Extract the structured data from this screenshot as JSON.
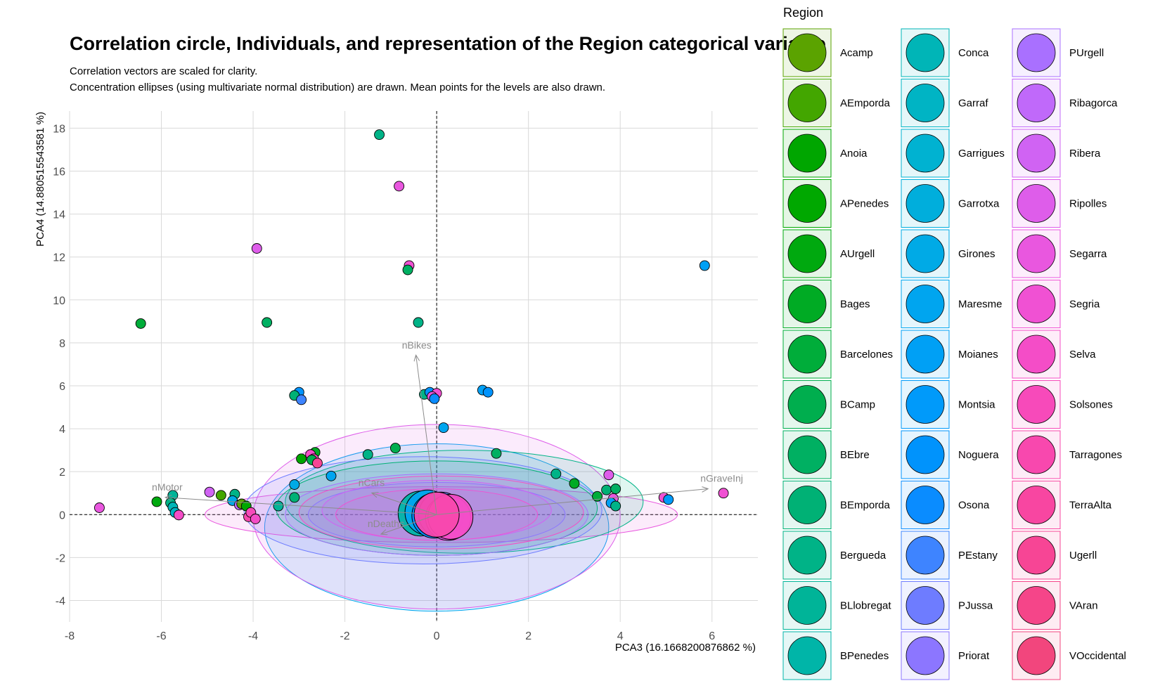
{
  "chart_data": {
    "type": "scatter",
    "title": "Correlation circle, Individuals, and representation of the Region categorical variable",
    "subtitle_lines": [
      "Correlation vectors are scaled for clarity.",
      "Concentration ellipses (using multivariate normal distribution) are drawn. Mean points for the levels are also drawn."
    ],
    "xlabel": "PCA3 (16.1668200876862 %)",
    "ylabel": "PCA4 (14.880515543581 %)",
    "xlim": [
      -8,
      7
    ],
    "ylim": [
      -5,
      18.8
    ],
    "xticks": [
      -8,
      -6,
      -4,
      -2,
      0,
      2,
      4,
      6
    ],
    "yticks": [
      -4,
      -2,
      0,
      2,
      4,
      6,
      8,
      10,
      12,
      14,
      16,
      18
    ],
    "legend": {
      "title": "Region",
      "placement": "right",
      "entries": [
        {
          "label": "Acamp",
          "color": "#5BA300"
        },
        {
          "label": "AEmporda",
          "color": "#43A600"
        },
        {
          "label": "Anoia",
          "color": "#00A600"
        },
        {
          "label": "APenedes",
          "color": "#00A800"
        },
        {
          "label": "AUrgell",
          "color": "#00A90F"
        },
        {
          "label": "Bages",
          "color": "#00AB24"
        },
        {
          "label": "Barcelones",
          "color": "#00AD3A"
        },
        {
          "label": "BCamp",
          "color": "#00AE4E"
        },
        {
          "label": "BEbre",
          "color": "#00B062"
        },
        {
          "label": "BEmporda",
          "color": "#00B175"
        },
        {
          "label": "Bergueda",
          "color": "#00B387"
        },
        {
          "label": "BLlobregat",
          "color": "#00B498"
        },
        {
          "label": "BPenedes",
          "color": "#00B5A8"
        },
        {
          "label": "Conca",
          "color": "#00B5B7"
        },
        {
          "label": "Garraf",
          "color": "#00B4C4"
        },
        {
          "label": "Garrigues",
          "color": "#00B2D1"
        },
        {
          "label": "Garrotxa",
          "color": "#00AEDC"
        },
        {
          "label": "Girones",
          "color": "#00AAE6"
        },
        {
          "label": "Maresme",
          "color": "#00A5EF"
        },
        {
          "label": "Moianes",
          "color": "#00A0F5"
        },
        {
          "label": "Montsia",
          "color": "#009AFA"
        },
        {
          "label": "Noguera",
          "color": "#0093FC"
        },
        {
          "label": "Osona",
          "color": "#0A8CFF"
        },
        {
          "label": "PEstany",
          "color": "#3E84FF"
        },
        {
          "label": "PJussa",
          "color": "#6E7CFF"
        },
        {
          "label": "Priorat",
          "color": "#8C76FF"
        },
        {
          "label": "PUrgell",
          "color": "#A970FF"
        },
        {
          "label": "Ribagorca",
          "color": "#C069FA"
        },
        {
          "label": "Ribera",
          "color": "#D063F3"
        },
        {
          "label": "Ripolles",
          "color": "#DE5DEA"
        },
        {
          "label": "Segarra",
          "color": "#E957DF"
        },
        {
          "label": "Segria",
          "color": "#F051D3"
        },
        {
          "label": "Selva",
          "color": "#F44DC7"
        },
        {
          "label": "Solsones",
          "color": "#F74ABA"
        },
        {
          "label": "Tarragones",
          "color": "#F848AE"
        },
        {
          "label": "TerraAlta",
          "color": "#F846A1"
        },
        {
          "label": "Ugerll",
          "color": "#F74595"
        },
        {
          "label": "VAran",
          "color": "#F54589"
        },
        {
          "label": "VOccidental",
          "color": "#F2467D"
        }
      ]
    },
    "variables": [
      {
        "name": "nBikes",
        "x": -0.45,
        "y": 7.4
      },
      {
        "name": "nGraveInj",
        "x": 5.9,
        "y": 1.2
      },
      {
        "name": "nMotor",
        "x": -5.9,
        "y": 0.8
      },
      {
        "name": "nDeaths",
        "x": -1.2,
        "y": -0.9
      },
      {
        "name": "nCars",
        "x": -1.4,
        "y": 1.0
      }
    ],
    "points": [
      {
        "x": -1.25,
        "y": 17.7,
        "color": "#00B387"
      },
      {
        "x": -0.82,
        "y": 15.3,
        "color": "#E957DF"
      },
      {
        "x": -3.92,
        "y": 12.4,
        "color": "#DE5DEA"
      },
      {
        "x": 5.84,
        "y": 11.6,
        "color": "#00A0F5"
      },
      {
        "x": -0.6,
        "y": 11.6,
        "color": "#F051D3"
      },
      {
        "x": -0.63,
        "y": 11.4,
        "color": "#00B062"
      },
      {
        "x": -6.45,
        "y": 8.9,
        "color": "#00AD3A"
      },
      {
        "x": -3.7,
        "y": 8.95,
        "color": "#00B062"
      },
      {
        "x": -0.4,
        "y": 8.95,
        "color": "#00B387"
      },
      {
        "x": -3.0,
        "y": 5.7,
        "color": "#0093FC"
      },
      {
        "x": -3.1,
        "y": 5.55,
        "color": "#00B175"
      },
      {
        "x": -2.95,
        "y": 5.35,
        "color": "#3E84FF"
      },
      {
        "x": -0.27,
        "y": 5.6,
        "color": "#00B387"
      },
      {
        "x": -0.15,
        "y": 5.7,
        "color": "#0093FC"
      },
      {
        "x": 0.0,
        "y": 5.65,
        "color": "#F051D3"
      },
      {
        "x": -0.1,
        "y": 5.5,
        "color": "#E957DF"
      },
      {
        "x": -0.05,
        "y": 5.4,
        "color": "#0A8CFF"
      },
      {
        "x": 1.0,
        "y": 5.8,
        "color": "#00A0F5"
      },
      {
        "x": 1.12,
        "y": 5.7,
        "color": "#0093FC"
      },
      {
        "x": 0.15,
        "y": 4.05,
        "color": "#00A5EF"
      },
      {
        "x": -2.65,
        "y": 2.9,
        "color": "#00AB24"
      },
      {
        "x": -2.95,
        "y": 2.6,
        "color": "#00A600"
      },
      {
        "x": -2.75,
        "y": 2.8,
        "color": "#F44DC7"
      },
      {
        "x": -2.68,
        "y": 2.6,
        "color": "#F74ABA"
      },
      {
        "x": -2.72,
        "y": 2.55,
        "color": "#00AE4E"
      },
      {
        "x": -2.6,
        "y": 2.4,
        "color": "#F74595"
      },
      {
        "x": -3.1,
        "y": 1.4,
        "color": "#00AAE6"
      },
      {
        "x": -5.75,
        "y": 0.9,
        "color": "#00B498"
      },
      {
        "x": -6.1,
        "y": 0.6,
        "color": "#00A90F"
      },
      {
        "x": -5.8,
        "y": 0.55,
        "color": "#00B387"
      },
      {
        "x": -5.75,
        "y": 0.35,
        "color": "#00B5B7"
      },
      {
        "x": -5.7,
        "y": 0.1,
        "color": "#00B4C4"
      },
      {
        "x": -5.62,
        "y": -0.02,
        "color": "#F44DC7"
      },
      {
        "x": -7.35,
        "y": 0.32,
        "color": "#E957DF"
      },
      {
        "x": -4.95,
        "y": 1.05,
        "color": "#D063F3"
      },
      {
        "x": -4.7,
        "y": 0.9,
        "color": "#43A600"
      },
      {
        "x": -4.4,
        "y": 0.95,
        "color": "#00B387"
      },
      {
        "x": -4.45,
        "y": 0.65,
        "color": "#00AAE6"
      },
      {
        "x": -4.3,
        "y": 0.45,
        "color": "#C069FA"
      },
      {
        "x": -4.25,
        "y": 0.5,
        "color": "#5BA300"
      },
      {
        "x": -4.15,
        "y": 0.4,
        "color": "#00A800"
      },
      {
        "x": -4.1,
        "y": -0.1,
        "color": "#F848AE"
      },
      {
        "x": -4.05,
        "y": 0.1,
        "color": "#F74ABA"
      },
      {
        "x": -3.95,
        "y": -0.2,
        "color": "#F44DC7"
      },
      {
        "x": -3.45,
        "y": 0.4,
        "color": "#00B498"
      },
      {
        "x": -3.1,
        "y": 0.8,
        "color": "#00B175"
      },
      {
        "x": -2.3,
        "y": 1.8,
        "color": "#00A5EF"
      },
      {
        "x": -1.5,
        "y": 2.8,
        "color": "#00B387"
      },
      {
        "x": -0.9,
        "y": 3.1,
        "color": "#00AE4E"
      },
      {
        "x": 1.3,
        "y": 2.85,
        "color": "#00B062"
      },
      {
        "x": 2.6,
        "y": 1.9,
        "color": "#00B387"
      },
      {
        "x": 3.0,
        "y": 1.45,
        "color": "#00AB24"
      },
      {
        "x": 3.75,
        "y": 1.85,
        "color": "#DE5DEA"
      },
      {
        "x": 3.5,
        "y": 0.85,
        "color": "#00AD3A"
      },
      {
        "x": 3.7,
        "y": 1.15,
        "color": "#00B175"
      },
      {
        "x": 3.9,
        "y": 1.2,
        "color": "#00B062"
      },
      {
        "x": 3.85,
        "y": 0.75,
        "color": "#E957DF"
      },
      {
        "x": 3.8,
        "y": 0.55,
        "color": "#00A0F5"
      },
      {
        "x": 3.9,
        "y": 0.4,
        "color": "#00B387"
      },
      {
        "x": 4.95,
        "y": 0.8,
        "color": "#F051D3"
      },
      {
        "x": 5.05,
        "y": 0.7,
        "color": "#009AFA"
      },
      {
        "x": 6.25,
        "y": 1.0,
        "color": "#F051D3"
      }
    ],
    "ellipses": [
      {
        "cx": 0.0,
        "cy": -0.6,
        "rx": 3.75,
        "ry": 3.9,
        "color": "#00A5EF"
      },
      {
        "cx": 0.0,
        "cy": -0.1,
        "rx": 4.0,
        "ry": 4.3,
        "color": "#DE5DEA"
      },
      {
        "cx": 0.1,
        "cy": 0.0,
        "rx": 5.15,
        "ry": 1.3,
        "color": "#E957DF"
      },
      {
        "cx": 0.6,
        "cy": 0.6,
        "rx": 3.9,
        "ry": 2.4,
        "color": "#00B387"
      },
      {
        "cx": -0.3,
        "cy": 0.2,
        "rx": 3.9,
        "ry": 2.5,
        "color": "#6E7CFF"
      },
      {
        "cx": 0.0,
        "cy": 0.3,
        "rx": 3.5,
        "ry": 2.2,
        "color": "#00B175"
      },
      {
        "cx": 0.0,
        "cy": 0.0,
        "rx": 3.3,
        "ry": 1.9,
        "color": "#A970FF"
      },
      {
        "cx": 0.1,
        "cy": 0.1,
        "rx": 3.1,
        "ry": 1.7,
        "color": "#F44DC7"
      },
      {
        "cx": 0.0,
        "cy": 0.0,
        "rx": 2.8,
        "ry": 1.5,
        "color": "#8C76FF"
      },
      {
        "cx": 0.0,
        "cy": 0.2,
        "rx": 2.5,
        "ry": 1.4,
        "color": "#D063F3"
      },
      {
        "cx": 0.0,
        "cy": 0.0,
        "rx": 2.2,
        "ry": 1.2,
        "color": "#F051D3"
      }
    ],
    "means": [
      {
        "x": -0.35,
        "y": 0.05,
        "color": "#00B5A8"
      },
      {
        "x": -0.2,
        "y": 0.1,
        "color": "#00A5EF"
      },
      {
        "x": -0.05,
        "y": -0.05,
        "color": "#0A8CFF"
      },
      {
        "x": 0.1,
        "y": 0.0,
        "color": "#6E7CFF"
      },
      {
        "x": 0.25,
        "y": -0.15,
        "color": "#DE5DEA"
      },
      {
        "x": 0.3,
        "y": -0.1,
        "color": "#F44DC7"
      },
      {
        "x": 0.0,
        "y": 0.0,
        "color": "#F848AE"
      }
    ]
  }
}
